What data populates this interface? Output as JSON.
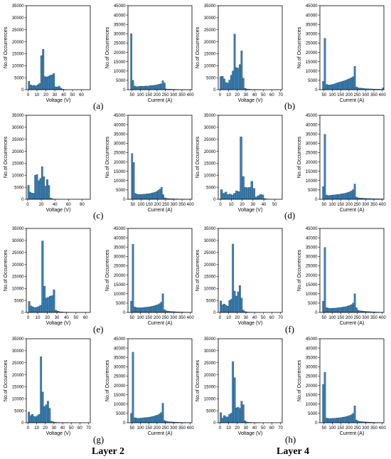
{
  "layer_labels": [
    "Layer 2",
    "Layer 4"
  ],
  "panel_labels": [
    "(a)",
    "(b)",
    "(c)",
    "(d)",
    "(e)",
    "(f)",
    "(g)",
    "(h)"
  ],
  "colors": {
    "bar_fill": "#3b7fb2",
    "bar_edge": "#1f3f5c",
    "axis": "#000000"
  },
  "chart_data": [
    {
      "type": "bar",
      "panel": "(a)",
      "layer": "Layer 2",
      "quantity": "voltage",
      "xlabel": "Voltage (V)",
      "ylabel": "No.of Occurrences",
      "xlim": [
        -2,
        70
      ],
      "ylim": [
        0,
        35000
      ],
      "xticks": [
        0,
        10,
        20,
        30,
        40,
        50,
        60
      ],
      "yticks": [
        0,
        5000,
        10000,
        15000,
        20000,
        25000,
        30000,
        35000
      ],
      "bin_start": 0,
      "bin_width": 2,
      "values": [
        3500,
        2000,
        1700,
        1800,
        1600,
        2100,
        2600,
        14200,
        16800,
        5500,
        5300,
        5600,
        6000,
        6200,
        6800,
        1200,
        1100,
        1500,
        700,
        200,
        100,
        50
      ]
    },
    {
      "type": "bar",
      "panel": "(a)",
      "layer": "Layer 2",
      "quantity": "current",
      "xlabel": "Current (A)",
      "ylabel": "No.of Occurrences",
      "xlim": [
        25,
        410
      ],
      "ylim": [
        0,
        45000
      ],
      "xticks": [
        50,
        100,
        150,
        200,
        250,
        300,
        350,
        400
      ],
      "yticks": [
        0,
        5000,
        10000,
        15000,
        20000,
        25000,
        30000,
        35000,
        40000,
        45000
      ],
      "bin_start": 40,
      "bin_width": 10,
      "values": [
        30000,
        5000,
        2000,
        1600,
        1700,
        1800,
        1900,
        1800,
        1900,
        2000,
        1900,
        2100,
        2200,
        2300,
        2400,
        2500,
        2700,
        3000,
        3200,
        4800,
        3600,
        400,
        300,
        300,
        250,
        200,
        200,
        150,
        150,
        100,
        100,
        80,
        60,
        50,
        40,
        30,
        20
      ]
    },
    {
      "type": "bar",
      "panel": "(b)",
      "layer": "Layer 4",
      "quantity": "voltage",
      "xlabel": "Voltage (V)",
      "ylabel": "No.of Occurrences",
      "xlim": [
        -2,
        72
      ],
      "ylim": [
        0,
        35000
      ],
      "xticks": [
        0,
        10,
        20,
        30,
        40,
        50,
        60,
        70
      ],
      "yticks": [
        0,
        5000,
        10000,
        15000,
        20000,
        25000,
        30000,
        35000
      ],
      "bin_start": 0,
      "bin_width": 2,
      "values": [
        5500,
        5600,
        4500,
        3000,
        2800,
        4000,
        6000,
        7800,
        23200,
        9200,
        9000,
        10500,
        16200,
        4800,
        600,
        300,
        200,
        150,
        100,
        80,
        60,
        50,
        40,
        30
      ]
    },
    {
      "type": "bar",
      "panel": "(b)",
      "layer": "Layer 4",
      "quantity": "current",
      "xlabel": "Current (A)",
      "ylabel": "No.of Occurrences",
      "xlim": [
        25,
        410
      ],
      "ylim": [
        0,
        45000
      ],
      "xticks": [
        50,
        100,
        150,
        200,
        250,
        300,
        350,
        400
      ],
      "yticks": [
        0,
        5000,
        10000,
        15000,
        20000,
        25000,
        30000,
        35000,
        40000,
        45000
      ],
      "bin_start": 40,
      "bin_width": 10,
      "values": [
        4500,
        27500,
        2900,
        2500,
        2600,
        2700,
        2900,
        3200,
        3500,
        3800,
        4100,
        4300,
        4600,
        4900,
        5200,
        5600,
        6000,
        6400,
        7000,
        12500,
        1500,
        1000,
        900,
        800,
        700,
        600,
        500,
        500,
        400,
        400,
        350,
        300,
        300,
        250,
        250,
        200,
        1000
      ]
    },
    {
      "type": "bar",
      "panel": "(c)",
      "layer": "Layer 2",
      "quantity": "voltage",
      "xlabel": "Voltage (V)",
      "ylabel": "No.of Occurrences",
      "xlim": [
        -2,
        92
      ],
      "ylim": [
        0,
        35000
      ],
      "xticks": [
        0,
        20,
        40,
        60,
        80
      ],
      "yticks": [
        0,
        5000,
        10000,
        15000,
        20000,
        25000,
        30000,
        35000
      ],
      "bin_start": 0,
      "bin_width": 2.5,
      "values": [
        5800,
        3000,
        2600,
        2500,
        10000,
        10300,
        7800,
        8700,
        13600,
        9400,
        5500,
        8200,
        5800,
        500,
        200,
        100,
        60,
        40
      ]
    },
    {
      "type": "bar",
      "panel": "(c)",
      "layer": "Layer 2",
      "quantity": "current",
      "xlabel": "Current (A)",
      "ylabel": "No.of Occurrences",
      "xlim": [
        20,
        410
      ],
      "ylim": [
        0,
        45000
      ],
      "xticks": [
        50,
        100,
        150,
        200,
        250,
        300,
        350,
        400
      ],
      "yticks": [
        0,
        5000,
        10000,
        15000,
        20000,
        25000,
        30000,
        35000,
        40000,
        45000
      ],
      "bin_start": 40,
      "bin_width": 10,
      "values": [
        24500,
        19700,
        3200,
        2700,
        2600,
        2600,
        2600,
        2700,
        2800,
        2900,
        3000,
        3100,
        3300,
        3500,
        3800,
        4200,
        4800,
        5500,
        6400,
        2500,
        800,
        500,
        400,
        300,
        300,
        250,
        200,
        200,
        150,
        150,
        100,
        100,
        80,
        60,
        50,
        40,
        30
      ]
    },
    {
      "type": "bar",
      "panel": "(d)",
      "layer": "Layer 4",
      "quantity": "voltage",
      "xlabel": "Voltage (V)",
      "ylabel": "No.of Occurrences",
      "xlim": [
        -2,
        57
      ],
      "ylim": [
        0,
        35000
      ],
      "xticks": [
        0,
        10,
        20,
        30,
        40,
        50
      ],
      "yticks": [
        0,
        5000,
        10000,
        15000,
        20000,
        25000,
        30000,
        35000
      ],
      "bin_start": 0,
      "bin_width": 2,
      "values": [
        4000,
        2500,
        3000,
        2000,
        2200,
        1800,
        2500,
        3500,
        3200,
        26000,
        9500,
        5000,
        4800,
        5000,
        7500,
        4500,
        1000,
        1500,
        2000,
        1800,
        300,
        100
      ]
    },
    {
      "type": "bar",
      "panel": "(d)",
      "layer": "Layer 4",
      "quantity": "current",
      "xlabel": "Current (A)",
      "ylabel": "No.of Occurrences",
      "xlim": [
        25,
        410
      ],
      "ylim": [
        0,
        45000
      ],
      "xticks": [
        50,
        100,
        150,
        200,
        250,
        300,
        350,
        400
      ],
      "yticks": [
        0,
        5000,
        10000,
        15000,
        20000,
        25000,
        30000,
        35000,
        40000,
        45000
      ],
      "bin_start": 40,
      "bin_width": 10,
      "values": [
        6800,
        34800,
        2300,
        2000,
        2100,
        2200,
        2300,
        2400,
        2500,
        2600,
        2700,
        2900,
        3000,
        3200,
        3400,
        3700,
        4000,
        4500,
        5200,
        8200,
        1200,
        800,
        700,
        600,
        600,
        500,
        500,
        400,
        400,
        350,
        300,
        300,
        250,
        250,
        200,
        200,
        150
      ]
    },
    {
      "type": "bar",
      "panel": "(e)",
      "layer": "Layer 2",
      "quantity": "voltage",
      "xlabel": "Voltage (V)",
      "ylabel": "No.of Occurrences",
      "xlim": [
        -2,
        65
      ],
      "ylim": [
        0,
        35000
      ],
      "xticks": [
        0,
        10,
        20,
        30,
        40,
        50,
        60
      ],
      "yticks": [
        0,
        5000,
        10000,
        15000,
        20000,
        25000,
        30000,
        35000
      ],
      "bin_start": 0,
      "bin_width": 2,
      "values": [
        4600,
        2700,
        2300,
        2000,
        2200,
        2500,
        3000,
        29800,
        10900,
        6000,
        6300,
        6800,
        7000,
        9400,
        900,
        500,
        300,
        200,
        150,
        100,
        60
      ]
    },
    {
      "type": "bar",
      "panel": "(e)",
      "layer": "Layer 2",
      "quantity": "current",
      "xlabel": "Current (A)",
      "ylabel": "No.of Occurrences",
      "xlim": [
        25,
        410
      ],
      "ylim": [
        0,
        45000
      ],
      "xticks": [
        50,
        100,
        150,
        200,
        250,
        300,
        350,
        400
      ],
      "yticks": [
        0,
        5000,
        10000,
        15000,
        20000,
        25000,
        30000,
        35000,
        40000,
        45000
      ],
      "bin_start": 40,
      "bin_width": 10,
      "values": [
        6000,
        36500,
        3000,
        2600,
        2500,
        2500,
        2500,
        2600,
        2700,
        2800,
        2900,
        3000,
        3200,
        3400,
        3600,
        3900,
        4200,
        4700,
        5500,
        10000,
        1500,
        900,
        700,
        600,
        500,
        450,
        400,
        350,
        300,
        250,
        200,
        200,
        150,
        150,
        100,
        100,
        80
      ]
    },
    {
      "type": "bar",
      "panel": "(f)",
      "layer": "Layer 4",
      "quantity": "voltage",
      "xlabel": "Voltage (V)",
      "ylabel": "No.of Occurrences",
      "xlim": [
        -2,
        72
      ],
      "ylim": [
        0,
        35000
      ],
      "xticks": [
        0,
        10,
        20,
        30,
        40,
        50,
        60,
        70
      ],
      "yticks": [
        0,
        5000,
        10000,
        15000,
        20000,
        25000,
        30000,
        35000
      ],
      "bin_start": 0,
      "bin_width": 2,
      "values": [
        4800,
        3200,
        3500,
        3000,
        2600,
        5000,
        5500,
        28500,
        8900,
        6800,
        8600,
        11200,
        6000,
        1000,
        400,
        200,
        150,
        100,
        80,
        60,
        40,
        30,
        20
      ]
    },
    {
      "type": "bar",
      "panel": "(f)",
      "layer": "Layer 4",
      "quantity": "current",
      "xlabel": "Current (A)",
      "ylabel": "No.of Occurrences",
      "xlim": [
        25,
        410
      ],
      "ylim": [
        0,
        45000
      ],
      "xticks": [
        50,
        100,
        150,
        200,
        250,
        300,
        350,
        400
      ],
      "yticks": [
        0,
        5000,
        10000,
        15000,
        20000,
        25000,
        30000,
        35000,
        40000,
        45000
      ],
      "bin_start": 40,
      "bin_width": 10,
      "values": [
        6000,
        34800,
        2600,
        2300,
        2200,
        2200,
        2300,
        2300,
        2400,
        2500,
        2600,
        2700,
        2900,
        3000,
        3200,
        3500,
        3800,
        4200,
        5000,
        10000,
        2500,
        1200,
        900,
        800,
        700,
        600,
        500,
        450,
        400,
        350,
        300,
        250,
        200,
        200,
        150,
        150,
        100
      ]
    },
    {
      "type": "bar",
      "panel": "(g)",
      "layer": "Layer 2",
      "quantity": "voltage",
      "xlabel": "Voltage (V)",
      "ylabel": "No.of Occurrences",
      "xlim": [
        -2,
        72
      ],
      "ylim": [
        0,
        35000
      ],
      "xticks": [
        0,
        10,
        20,
        30,
        40,
        50,
        60,
        70
      ],
      "yticks": [
        0,
        5000,
        10000,
        15000,
        20000,
        25000,
        30000,
        35000
      ],
      "bin_start": 0,
      "bin_width": 2,
      "values": [
        4500,
        3000,
        3500,
        2700,
        2500,
        3000,
        3500,
        27500,
        12800,
        6800,
        7500,
        9000,
        6000,
        700,
        400,
        200,
        150,
        100,
        80,
        50,
        40,
        30,
        20
      ]
    },
    {
      "type": "bar",
      "panel": "(g)",
      "layer": "Layer 2",
      "quantity": "current",
      "xlabel": "Current (A)",
      "ylabel": "No.of Occurrences",
      "xlim": [
        25,
        410
      ],
      "ylim": [
        0,
        45000
      ],
      "xticks": [
        50,
        100,
        150,
        200,
        250,
        300,
        350,
        400
      ],
      "yticks": [
        0,
        5000,
        10000,
        15000,
        20000,
        25000,
        30000,
        35000,
        40000,
        45000
      ],
      "bin_start": 40,
      "bin_width": 10,
      "values": [
        5000,
        37800,
        2700,
        2500,
        2400,
        2400,
        2500,
        2600,
        2700,
        2800,
        2900,
        3000,
        3200,
        3400,
        3600,
        3900,
        4200,
        4700,
        5500,
        10500,
        1200,
        800,
        600,
        500,
        450,
        400,
        350,
        300,
        250,
        200,
        200,
        150,
        150,
        100,
        100,
        80,
        60
      ]
    },
    {
      "type": "bar",
      "panel": "(h)",
      "layer": "Layer 4",
      "quantity": "voltage",
      "xlabel": "Voltage (V)",
      "ylabel": "No.of Occurrences",
      "xlim": [
        -2,
        72
      ],
      "ylim": [
        0,
        35000
      ],
      "xticks": [
        0,
        10,
        20,
        30,
        40,
        50,
        60,
        70
      ],
      "yticks": [
        0,
        5000,
        10000,
        15000,
        20000,
        25000,
        30000,
        35000
      ],
      "bin_start": 0,
      "bin_width": 2,
      "values": [
        4200,
        2000,
        3000,
        2500,
        2400,
        3500,
        4000,
        25500,
        18800,
        6200,
        6500,
        6000,
        9000,
        7500,
        800,
        300,
        200,
        150,
        100,
        80,
        50,
        40,
        30
      ]
    },
    {
      "type": "bar",
      "panel": "(h)",
      "layer": "Layer 4",
      "quantity": "current",
      "xlabel": "Current (A)",
      "ylabel": "No.of Occurrences",
      "xlim": [
        25,
        410
      ],
      "ylim": [
        0,
        45000
      ],
      "xticks": [
        50,
        100,
        150,
        200,
        250,
        300,
        350,
        400
      ],
      "yticks": [
        0,
        5000,
        10000,
        15000,
        20000,
        25000,
        30000,
        35000,
        40000,
        45000
      ],
      "bin_start": 40,
      "bin_width": 10,
      "values": [
        20500,
        27000,
        2500,
        2300,
        2300,
        2300,
        2400,
        2400,
        2500,
        2600,
        2700,
        2800,
        3000,
        3100,
        3300,
        3600,
        3900,
        4300,
        5000,
        9000,
        1500,
        900,
        700,
        600,
        500,
        450,
        400,
        350,
        300,
        250,
        200,
        200,
        150,
        150,
        100,
        100,
        80
      ]
    }
  ]
}
